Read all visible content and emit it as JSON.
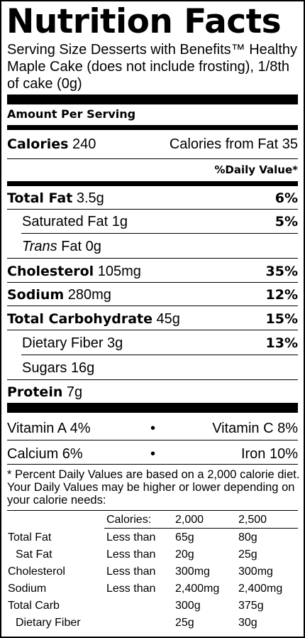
{
  "title": "Nutrition Facts",
  "serving_size": "Serving Size Desserts with Benefits™ Healthy Maple Cake (does not include frosting), 1/8th of cake (0g)",
  "amount_per_serving": "Amount Per Serving",
  "calories": {
    "label": "Calories",
    "value": "240",
    "from_fat_label": "Calories from Fat",
    "from_fat_value": "35"
  },
  "daily_value_header": "%Daily Value*",
  "nutrients": {
    "total_fat": {
      "label": "Total Fat",
      "amount": "3.5g",
      "dv": "6%"
    },
    "saturated_fat": {
      "label": "Saturated Fat",
      "amount": "1g",
      "dv": "5%"
    },
    "trans_fat": {
      "label_italic": "Trans",
      "label_rest": "Fat",
      "amount": "0g"
    },
    "cholesterol": {
      "label": "Cholesterol",
      "amount": "105mg",
      "dv": "35%"
    },
    "sodium": {
      "label": "Sodium",
      "amount": "280mg",
      "dv": "12%"
    },
    "total_carb": {
      "label": "Total Carbohydrate",
      "amount": "45g",
      "dv": "15%"
    },
    "dietary_fiber": {
      "label": "Dietary Fiber",
      "amount": "3g",
      "dv": "13%"
    },
    "sugars": {
      "label": "Sugars",
      "amount": "16g"
    },
    "protein": {
      "label": "Protein",
      "amount": "7g"
    }
  },
  "vitamins": {
    "row1": {
      "left": "Vitamin A 4%",
      "bullet": "•",
      "right": "Vitamin C 8%"
    },
    "row2": {
      "left": "Calcium 6%",
      "bullet": "•",
      "right": "Iron 10%"
    }
  },
  "footnote": "* Percent Daily Values are based on a 2,000 calorie diet. Your Daily Values may be higher or lower depending on your calorie needs:",
  "reference_table": {
    "header": {
      "calories_label": "Calories:",
      "c2000": "2,000",
      "c2500": "2,500"
    },
    "rows": [
      {
        "name": "Total Fat",
        "qual": "Less than",
        "v2000": "65g",
        "v2500": "80g"
      },
      {
        "name": "Sat Fat",
        "qual": "Less than",
        "v2000": "20g",
        "v2500": "25g"
      },
      {
        "name": "Cholesterol",
        "qual": "Less than",
        "v2000": "300mg",
        "v2500": "300mg"
      },
      {
        "name": "Sodium",
        "qual": "Less than",
        "v2000": "2,400mg",
        "v2500": "2,400mg"
      },
      {
        "name": "Total Carb",
        "qual": "",
        "v2000": "300g",
        "v2500": "375g"
      },
      {
        "name": "Dietary Fiber",
        "qual": "",
        "v2000": "25g",
        "v2500": "30g"
      }
    ]
  }
}
